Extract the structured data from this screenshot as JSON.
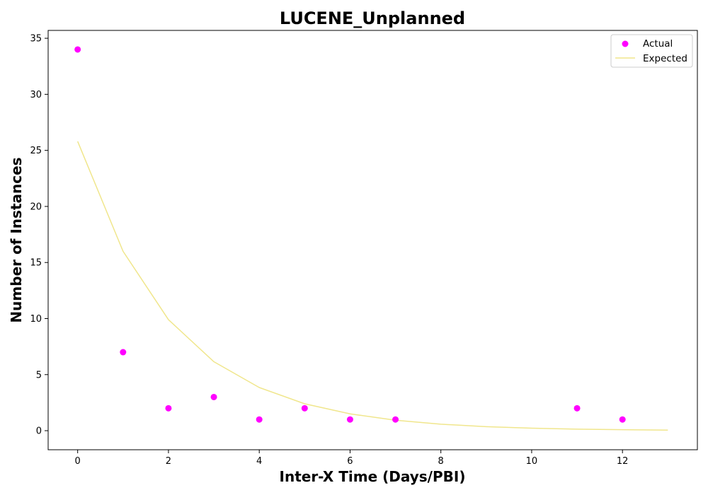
{
  "chart_data": {
    "type": "scatter",
    "title": "LUCENE_Unplanned",
    "xlabel": "Inter-X Time (Days/PBI)",
    "ylabel": "Number of Instances",
    "xlim": [
      -0.65,
      13.65
    ],
    "ylim": [
      -1.7,
      35.7
    ],
    "xticks": [
      0,
      2,
      4,
      6,
      8,
      10,
      12
    ],
    "yticks": [
      0,
      5,
      10,
      15,
      20,
      25,
      30,
      35
    ],
    "grid": false,
    "legend_position": "top-right",
    "series": [
      {
        "name": "Actual",
        "kind": "scatter",
        "color": "#ff00ff",
        "x": [
          0,
          1,
          2,
          3,
          4,
          5,
          6,
          7,
          11,
          12
        ],
        "y": [
          34,
          7,
          2,
          3,
          1,
          2,
          1,
          1,
          2,
          1
        ]
      },
      {
        "name": "Expected",
        "kind": "line",
        "color": "#f0e68c",
        "x": [
          0,
          1,
          2,
          3,
          4,
          5,
          6,
          7,
          8,
          9,
          10,
          11,
          12,
          13
        ],
        "y": [
          25.8,
          16.0,
          9.9,
          6.15,
          3.85,
          2.4,
          1.5,
          0.93,
          0.58,
          0.36,
          0.22,
          0.14,
          0.09,
          0.05
        ]
      }
    ]
  }
}
